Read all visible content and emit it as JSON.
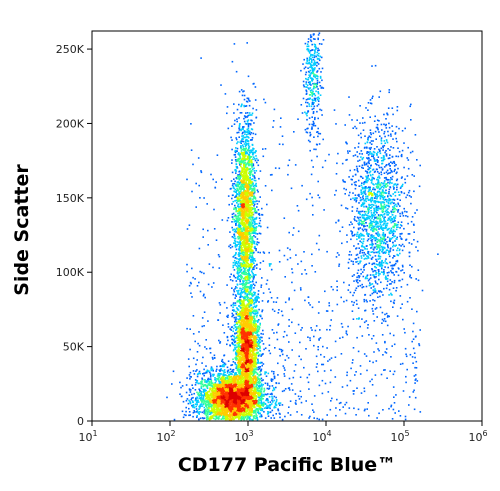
{
  "chart_data": {
    "type": "scatter",
    "subtype": "flow-cytometry-density-dot-plot",
    "title": "",
    "xlabel": "CD177 Pacific Blue™",
    "ylabel": "Side Scatter",
    "x_scale": "log",
    "xlim": [
      10,
      1000000
    ],
    "ylim": [
      0,
      262144
    ],
    "x_ticks": [
      {
        "value": 10,
        "base": "10",
        "exp": "1"
      },
      {
        "value": 100,
        "base": "10",
        "exp": "2"
      },
      {
        "value": 1000,
        "base": "10",
        "exp": "3"
      },
      {
        "value": 10000,
        "base": "10",
        "exp": "4"
      },
      {
        "value": 100000,
        "base": "10",
        "exp": "5"
      },
      {
        "value": 1000000,
        "base": "10",
        "exp": "6"
      }
    ],
    "y_ticks": [
      {
        "value": 0,
        "label": "0"
      },
      {
        "value": 50000,
        "label": "50K"
      },
      {
        "value": 100000,
        "label": "100K"
      },
      {
        "value": 150000,
        "label": "150K"
      },
      {
        "value": 200000,
        "label": "200K"
      },
      {
        "value": 250000,
        "label": "250K"
      }
    ],
    "grid": false,
    "legend": "none",
    "color_scale": [
      "#0000cc",
      "#0066ff",
      "#00ccff",
      "#33ff99",
      "#ccff00",
      "#ffcc00",
      "#ff3300",
      "#dd0000"
    ],
    "populations": [
      {
        "name": "",
        "x_center": 600,
        "y_center": 15000,
        "x_spread_log": 0.22,
        "y_spread": 9000,
        "density": "very-high"
      },
      {
        "name": "",
        "x_center": 950,
        "y_center": 50000,
        "x_spread_log": 0.08,
        "y_spread": 18000,
        "density": "high"
      },
      {
        "name": "",
        "x_center": 900,
        "y_center": 140000,
        "x_spread_log": 0.07,
        "y_spread": 32000,
        "density": "high"
      },
      {
        "name": "",
        "x_center": 45000,
        "y_center": 140000,
        "x_spread_log": 0.18,
        "y_spread": 30000,
        "density": "medium"
      },
      {
        "name": "",
        "x_center": 6500,
        "y_center": 230000,
        "x_spread_log": 0.06,
        "y_spread": 20000,
        "density": "low"
      }
    ]
  }
}
